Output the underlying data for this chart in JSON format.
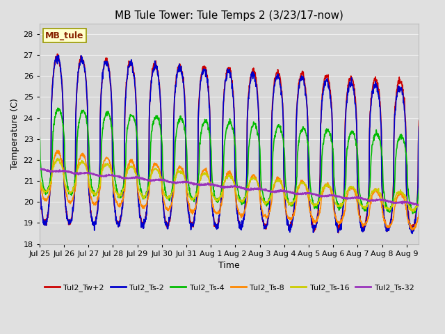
{
  "title": "MB Tule Tower: Tule Temps 2 (3/23/17-now)",
  "xlabel": "Time",
  "ylabel": "Temperature (C)",
  "ylim": [
    18.0,
    28.5
  ],
  "yticks": [
    18.0,
    19.0,
    20.0,
    21.0,
    22.0,
    23.0,
    24.0,
    25.0,
    26.0,
    27.0,
    28.0
  ],
  "fig_bg": "#e0e0e0",
  "plot_bg": "#d8d8d8",
  "grid_color": "#f0f0f0",
  "series_keys": [
    "Tul2_Tw+2",
    "Tul2_Ts-2",
    "Tul2_Ts-4",
    "Tul2_Ts-8",
    "Tul2_Ts-16",
    "Tul2_Ts-32"
  ],
  "series_colors": [
    "#cc0000",
    "#0000cc",
    "#00bb00",
    "#ff8800",
    "#cccc00",
    "#9933bb"
  ],
  "series_lw": [
    1.2,
    1.2,
    1.2,
    1.2,
    1.2,
    1.5
  ],
  "annotation_text": "MB_tule",
  "annotation_color": "#882200",
  "annotation_bg": "#ffffcc",
  "annotation_border": "#999900",
  "x_tick_labels": [
    "Jul 25",
    "Jul 26",
    "Jul 27",
    "Jul 28",
    "Jul 29",
    "Jul 30",
    "Jul 31",
    "Aug 1",
    "Aug 2",
    "Aug 3",
    "Aug 4",
    "Aug 5",
    "Aug 6",
    "Aug 7",
    "Aug 8",
    "Aug 9"
  ],
  "n_days": 15.5,
  "title_fontsize": 11,
  "axis_fontsize": 9,
  "tick_fontsize": 8,
  "legend_fontsize": 8
}
